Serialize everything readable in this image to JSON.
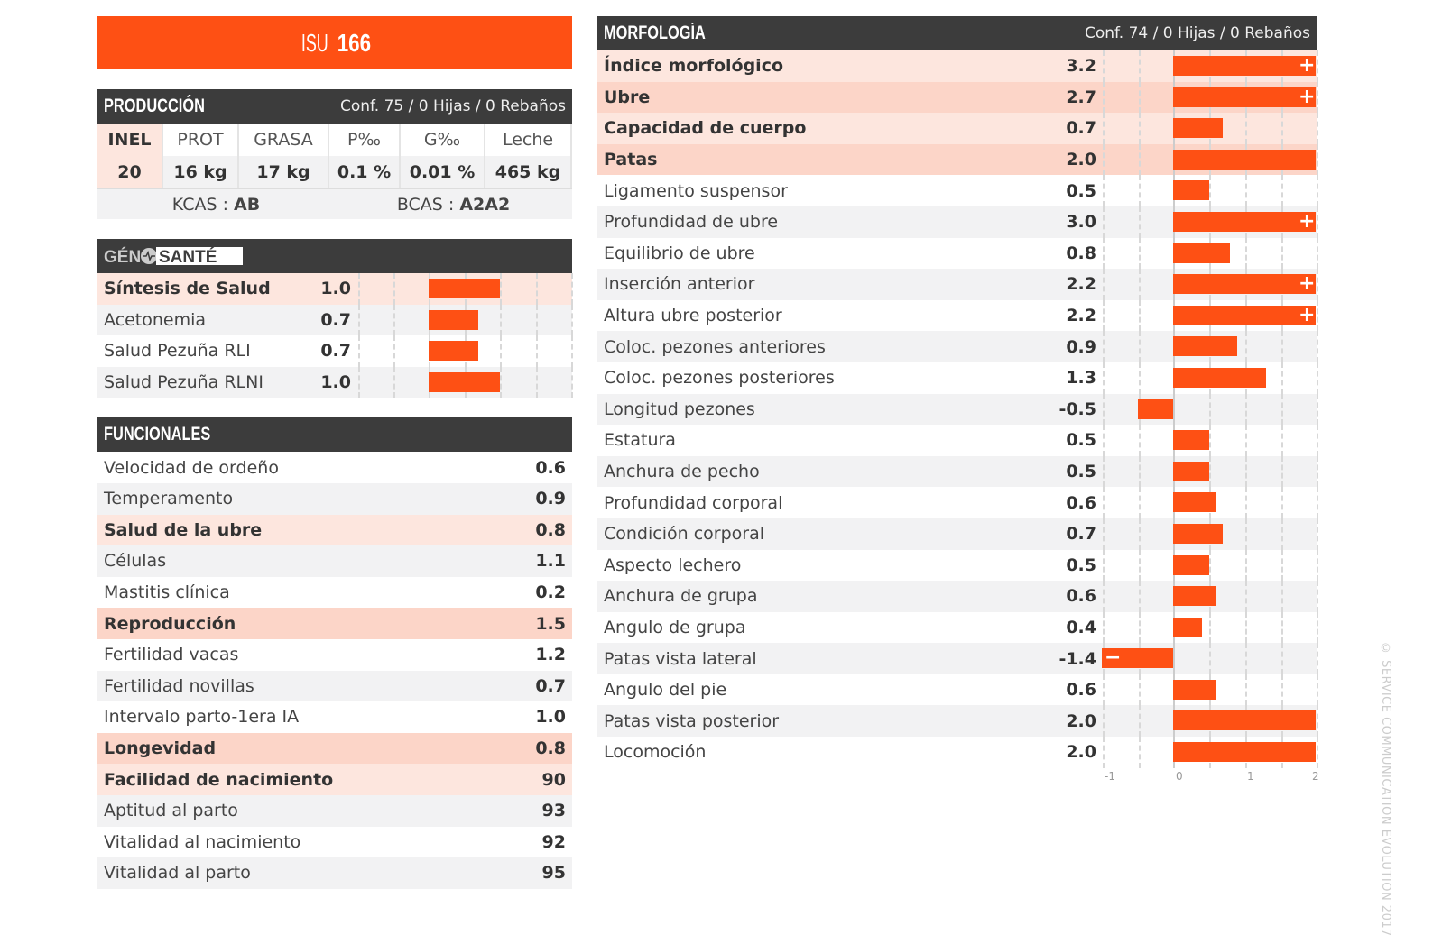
{
  "title": {
    "prefix": "ISU",
    "number": "166"
  },
  "produccion": {
    "header": "PRODUCCIÓN",
    "conf": "Conf. 75 / 0 Hijas / 0 Rebaños",
    "columns": [
      "INEL",
      "PROT",
      "GRASA",
      "P‰",
      "G‰",
      "Leche"
    ],
    "values": [
      "20",
      "16 kg",
      "17 kg",
      "0.1 %",
      "0.01 %",
      "465 kg"
    ],
    "kcas_label": "KCAS : ",
    "kcas": "AB",
    "bcas_label": "BCAS : ",
    "bcas": "A2A2"
  },
  "genosante": {
    "logo": "GÉNOSANTÉ",
    "rows": [
      {
        "label": "Síntesis de Salud",
        "value": "1.0",
        "v": 1.0,
        "style": "h1"
      },
      {
        "label": "Acetonemia",
        "value": "0.7",
        "v": 0.7,
        "style": ""
      },
      {
        "label": "Salud Pezuña RLI",
        "value": "0.7",
        "v": 0.7,
        "style": ""
      },
      {
        "label": "Salud Pezuña RLNI",
        "value": "1.0",
        "v": 1.0,
        "style": ""
      }
    ]
  },
  "funcionales": {
    "header": "FUNCIONALES",
    "rows": [
      {
        "label": "Velocidad de ordeño",
        "value": "0.6",
        "style": ""
      },
      {
        "label": "Temperamento",
        "value": "0.9",
        "style": ""
      },
      {
        "label": "Salud de la ubre",
        "value": "0.8",
        "style": "h1"
      },
      {
        "label": "Células",
        "value": "1.1",
        "style": ""
      },
      {
        "label": "Mastitis clínica",
        "value": "0.2",
        "style": ""
      },
      {
        "label": "Reproducción",
        "value": "1.5",
        "style": "h2"
      },
      {
        "label": "Fertilidad vacas",
        "value": "1.2",
        "style": ""
      },
      {
        "label": "Fertilidad novillas",
        "value": "0.7",
        "style": ""
      },
      {
        "label": "Intervalo parto-1era IA",
        "value": "1.0",
        "style": ""
      },
      {
        "label": "Longevidad",
        "value": "0.8",
        "style": "h2"
      },
      {
        "label": "Facilidad de nacimiento",
        "value": "90",
        "style": "h1"
      },
      {
        "label": "Aptitud al parto",
        "value": "93",
        "style": ""
      },
      {
        "label": "Vitalidad al nacimiento",
        "value": "92",
        "style": ""
      },
      {
        "label": "Vitalidad al parto",
        "value": "95",
        "style": ""
      }
    ]
  },
  "morfologia": {
    "header": "MORFOLOGÍA",
    "conf": "Conf. 74 / 0 Hijas / 0 Rebaños",
    "axis_ticks": [
      "-1",
      "0",
      "1",
      "2"
    ],
    "axis_range": [
      -1,
      2
    ],
    "rows": [
      {
        "label": "Índice morfológico",
        "value": "3.2",
        "v": 3.2,
        "style": "h1"
      },
      {
        "label": "Ubre",
        "value": "2.7",
        "v": 2.7,
        "style": "h2"
      },
      {
        "label": "Capacidad de cuerpo",
        "value": "0.7",
        "v": 0.7,
        "style": "h1"
      },
      {
        "label": "Patas",
        "value": "2.0",
        "v": 2.0,
        "style": "h2"
      },
      {
        "label": "Ligamento suspensor",
        "value": "0.5",
        "v": 0.5,
        "style": ""
      },
      {
        "label": "Profundidad de ubre",
        "value": "3.0",
        "v": 3.0,
        "style": ""
      },
      {
        "label": "Equilibrio de ubre",
        "value": "0.8",
        "v": 0.8,
        "style": ""
      },
      {
        "label": "Inserción anterior",
        "value": "2.2",
        "v": 2.2,
        "style": ""
      },
      {
        "label": "Altura ubre posterior",
        "value": "2.2",
        "v": 2.2,
        "style": ""
      },
      {
        "label": "Coloc. pezones anteriores",
        "value": "0.9",
        "v": 0.9,
        "style": ""
      },
      {
        "label": "Coloc. pezones posteriores",
        "value": "1.3",
        "v": 1.3,
        "style": ""
      },
      {
        "label": "Longitud pezones",
        "value": "-0.5",
        "v": -0.5,
        "style": ""
      },
      {
        "label": "Estatura",
        "value": "0.5",
        "v": 0.5,
        "style": ""
      },
      {
        "label": "Anchura de pecho",
        "value": "0.5",
        "v": 0.5,
        "style": ""
      },
      {
        "label": "Profundidad corporal",
        "value": "0.6",
        "v": 0.6,
        "style": ""
      },
      {
        "label": "Condición corporal",
        "value": "0.7",
        "v": 0.7,
        "style": ""
      },
      {
        "label": "Aspecto lechero",
        "value": "0.5",
        "v": 0.5,
        "style": ""
      },
      {
        "label": "Anchura de grupa",
        "value": "0.6",
        "v": 0.6,
        "style": ""
      },
      {
        "label": "Angulo de grupa",
        "value": "0.4",
        "v": 0.4,
        "style": ""
      },
      {
        "label": "Patas vista lateral",
        "value": "-1.4",
        "v": -1.4,
        "style": ""
      },
      {
        "label": "Angulo del pie",
        "value": "0.6",
        "v": 0.6,
        "style": ""
      },
      {
        "label": "Patas vista posterior",
        "value": "2.0",
        "v": 2.0,
        "style": ""
      },
      {
        "label": "Locomoción",
        "value": "2.0",
        "v": 2.0,
        "style": ""
      }
    ]
  },
  "copyright": "© SERVICE COMMUNICATION EVOLUTION 2017",
  "colors": {
    "accent": "#fe5014",
    "header": "#3c3c3c",
    "highlight1": "#fde6de",
    "highlight2": "#fcd5c8"
  }
}
